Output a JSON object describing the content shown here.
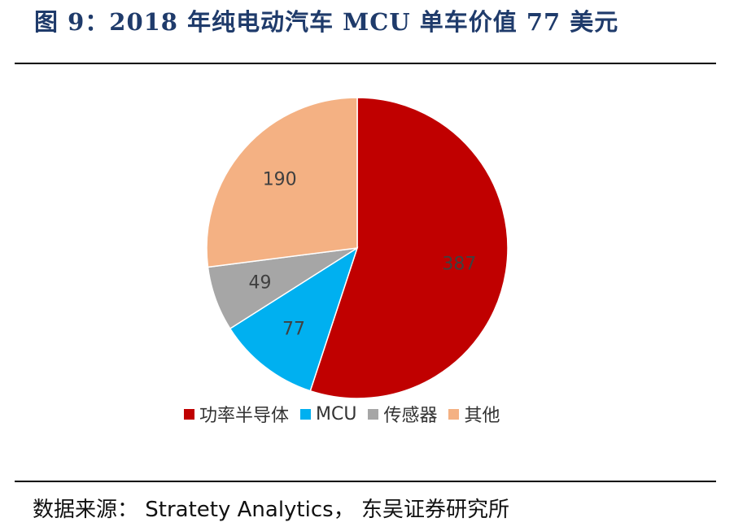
{
  "title": "图 9：2018 年纯电动汽车 MCU 单车价值 77 美元",
  "source": "数据来源： Stratety Analytics， 东吴证券研究所",
  "chart_data": {
    "type": "pie",
    "title": "",
    "categories": [
      "功率半导体",
      "MCU",
      "传感器",
      "其他"
    ],
    "values": [
      387,
      77,
      49,
      190
    ],
    "colors": [
      "#c00000",
      "#00b0f0",
      "#a6a6a6",
      "#f4b183"
    ],
    "data_labels": [
      "387",
      "77",
      "49",
      "190"
    ],
    "start_angle": "12 o'clock",
    "direction": "clockwise",
    "legend": "bottom"
  }
}
